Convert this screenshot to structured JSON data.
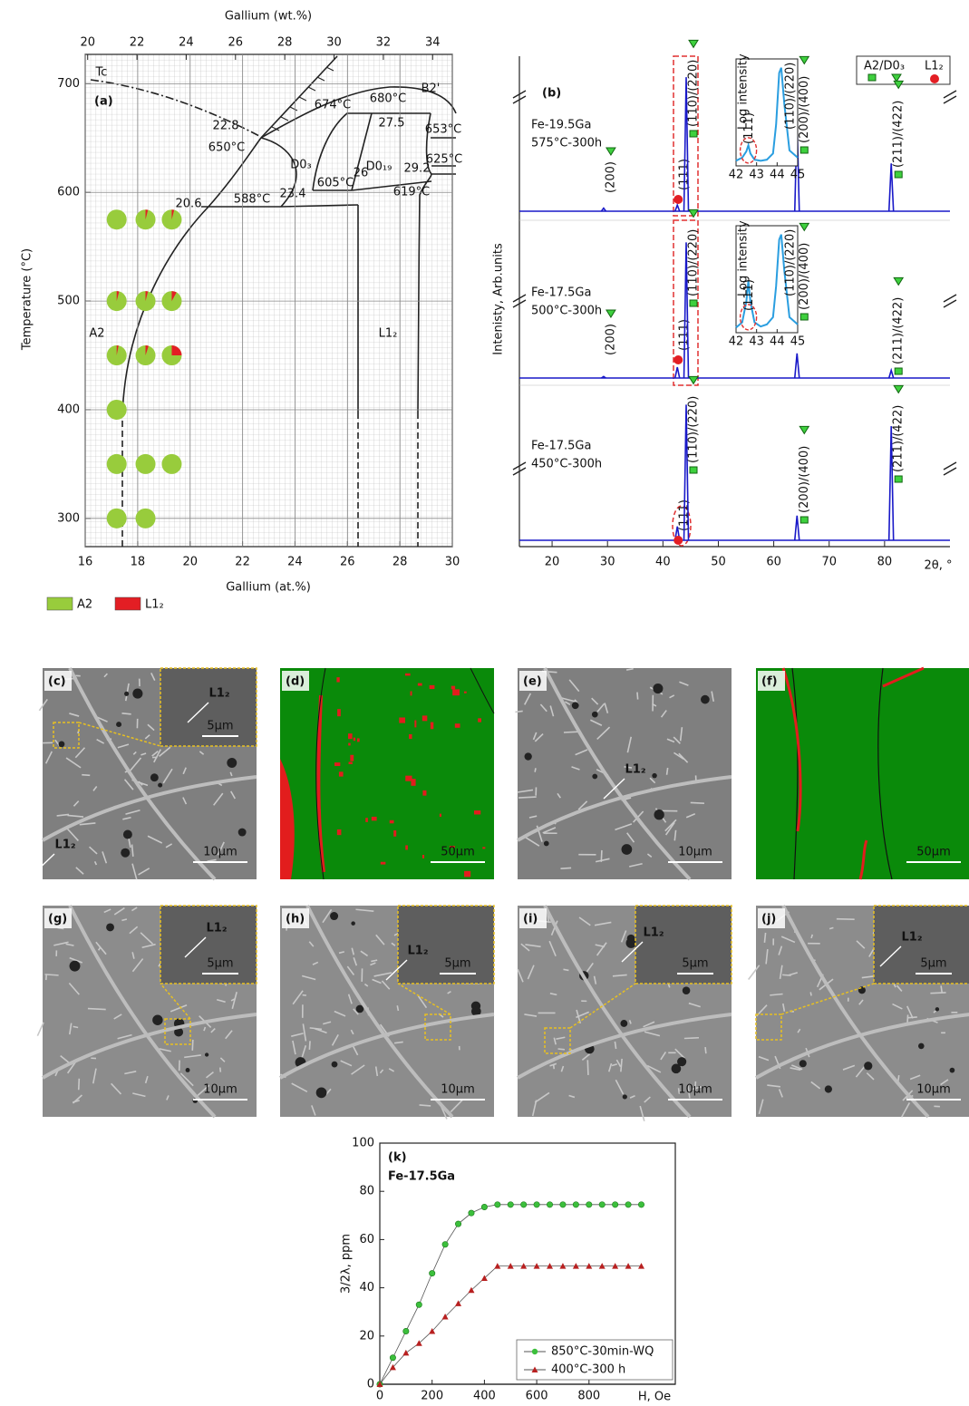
{
  "chart_data": [
    {
      "type": "pie-scatter",
      "panel": "(a)",
      "x_label": "Gallium (at.%)",
      "x2_label": "Gallium (wt.%)",
      "y_label": "Temperature (°C)",
      "xlim": [
        16,
        30
      ],
      "xticks": [
        16,
        18,
        20,
        22,
        24,
        26,
        28,
        30
      ],
      "x2lim": [
        19.9,
        34.8
      ],
      "x2ticks": [
        20,
        22,
        24,
        26,
        28,
        30,
        32,
        34
      ],
      "ylim": [
        274,
        727
      ],
      "yticks": [
        300,
        400,
        500,
        600,
        700
      ],
      "grid": true,
      "legend": [
        {
          "name": "A2",
          "color": "#98cc3c"
        },
        {
          "name": "L1₂",
          "color": "#e31e24"
        }
      ],
      "points": {
        "x": [
          17.2,
          18.3,
          19.3,
          17.2,
          18.3,
          19.3,
          17.2,
          18.3,
          19.3,
          17.2,
          17.2,
          18.3,
          19.3,
          17.2,
          18.3
        ],
        "y": [
          575,
          575,
          575,
          500,
          500,
          500,
          450,
          450,
          450,
          400,
          350,
          350,
          350,
          300,
          300
        ],
        "values": [
          0,
          4,
          4,
          4,
          4,
          8,
          3,
          5,
          25,
          0,
          0,
          0,
          0,
          0,
          0
        ]
      },
      "annotations": [
        "Tc",
        "B2'",
        "680°C",
        "674°C",
        "653°C",
        "650°C",
        "22.8",
        "27.5",
        "D0₃",
        "D0₁₉",
        "605°C",
        "26",
        "29.2",
        "625°C",
        "619°C",
        "588°C",
        "23.4",
        "20.6",
        "A2",
        "L1₂"
      ]
    },
    {
      "type": "spectrum",
      "panel": "(b)",
      "y_label": "Intenisty, Arb.units",
      "x_label": "2θ, °",
      "xlim": [
        14.1,
        91.8
      ],
      "xticks": [
        20,
        30,
        40,
        50,
        60,
        70,
        80
      ],
      "ylim": [
        0,
        100
      ],
      "color": "#1818c8",
      "legend": [
        {
          "name": "A2/D0₃",
          "color": "#1e9e1e"
        },
        {
          "name": "L1₂",
          "color": "#e31e24"
        }
      ],
      "panels": [
        {
          "sample": "Fe-19.5Ga",
          "treatment": "575°C-300h",
          "x": [
            29.3,
            42.6,
            44.2,
            64.2,
            81.2
          ],
          "values": [
            2,
            4,
            87,
            60,
            31
          ],
          "peak_labels": [
            "(200)",
            "(111)",
            "(110)/(220)",
            "(200)/(400)",
            "(211)/(422)"
          ],
          "peak_colors": [
            "#1e9e1e",
            "#e31e24",
            "#1e9e1e",
            "#1e9e1e",
            "#1e9e1e"
          ],
          "inset": {
            "y_label": "Log intensity",
            "xlim": [
              42,
              45
            ],
            "xticks": [
              42,
              43,
              44,
              45
            ],
            "ylim": [
              0,
              100
            ],
            "color": "#2a9ee0",
            "x": [
              42,
              42.3,
              42.5,
              42.6,
              42.7,
              42.9,
              43.2,
              43.5,
              43.8,
              43.95,
              44.1,
              44.2,
              44.35,
              44.6,
              45
            ],
            "values": [
              5,
              8,
              14,
              20,
              12,
              6,
              5,
              6,
              12,
              40,
              90,
              95,
              60,
              15,
              8
            ],
            "labels": [
              "(111)",
              "(110)/(220)"
            ]
          }
        },
        {
          "sample": "Fe-17.5Ga",
          "treatment": "500°C-300h",
          "x": [
            29.3,
            42.6,
            44.2,
            64.2,
            81.2
          ],
          "values": [
            1,
            7,
            88,
            16,
            5
          ],
          "peak_labels": [
            "(200)",
            "(111)",
            "(110)/(220)",
            "(200)/(400)",
            "(211)/(422)"
          ],
          "peak_colors": [
            "#1e9e1e",
            "#e31e24",
            "#1e9e1e",
            "#1e9e1e",
            "#1e9e1e"
          ],
          "inset": {
            "y_label": "Log intensity",
            "xlim": [
              42,
              45
            ],
            "xticks": [
              42,
              43,
              44,
              45
            ],
            "ylim": [
              0,
              100
            ],
            "color": "#2a9ee0",
            "x": [
              42,
              42.3,
              42.5,
              42.6,
              42.7,
              42.9,
              43.2,
              43.5,
              43.8,
              43.95,
              44.1,
              44.2,
              44.35,
              44.6,
              45
            ],
            "values": [
              5,
              10,
              30,
              50,
              30,
              10,
              6,
              8,
              15,
              45,
              90,
              95,
              60,
              15,
              8
            ],
            "labels": [
              "(111)",
              "(110)/(220)"
            ]
          }
        },
        {
          "sample": "Fe-17.5Ga",
          "treatment": "450°C-300h",
          "x": [
            42.6,
            44.2,
            64.2,
            81.2
          ],
          "values": [
            9,
            88,
            16,
            74
          ],
          "peak_labels": [
            "(111)",
            "(110)/(220)",
            "(200)/(400)",
            "(211)/(422)"
          ],
          "peak_colors": [
            "#e31e24",
            "#1e9e1e",
            "#1e9e1e",
            "#1e9e1e"
          ]
        }
      ]
    },
    {
      "type": "line",
      "panel": "(k)",
      "title": "Fe-17.5Ga",
      "x_label": "H, Oe",
      "y_label": "3/2λ, ppm",
      "x": [
        0,
        50,
        100,
        150,
        200,
        250,
        300,
        350,
        400,
        450,
        500,
        550,
        600,
        650,
        700,
        750,
        800,
        850,
        900,
        950,
        1000
      ],
      "xlim": [
        0,
        1130
      ],
      "xticks": [
        0,
        200,
        400,
        600,
        800
      ],
      "ylim": [
        0,
        100
      ],
      "yticks": [
        0,
        20,
        40,
        60,
        80,
        100
      ],
      "series": [
        {
          "name": "850°C-30min-WQ",
          "color": "#3cbf3c",
          "marker": "circle",
          "values": [
            0,
            11,
            22,
            33,
            46,
            58,
            66.5,
            71,
            73.5,
            74.5,
            74.5,
            74.5,
            74.5,
            74.5,
            74.5,
            74.5,
            74.5,
            74.5,
            74.5,
            74.5,
            74.5
          ]
        },
        {
          "name": "400°C-300 h",
          "color": "#b82020",
          "marker": "triangle",
          "values": [
            0,
            7,
            13,
            17,
            22,
            28,
            33.5,
            39,
            44,
            49,
            49,
            49,
            49,
            49,
            49,
            49,
            49,
            49,
            49,
            49,
            49
          ]
        }
      ]
    }
  ],
  "micrographs": [
    {
      "label": "(c)",
      "notes": [
        "L1₂",
        "L1₂"
      ],
      "scales": [
        "5µm",
        "10µm"
      ]
    },
    {
      "label": "(d)",
      "notes": [],
      "scales": [
        "50µm"
      ]
    },
    {
      "label": "(e)",
      "notes": [
        "L1₂"
      ],
      "scales": [
        "10µm"
      ]
    },
    {
      "label": "(f)",
      "notes": [],
      "scales": [
        "50µm"
      ]
    },
    {
      "label": "(g)",
      "notes": [
        "L1₂"
      ],
      "scales": [
        "5µm",
        "10µm"
      ]
    },
    {
      "label": "(h)",
      "notes": [
        "L1₂"
      ],
      "scales": [
        "5µm",
        "10µm"
      ]
    },
    {
      "label": "(i)",
      "notes": [
        "L1₂"
      ],
      "scales": [
        "5µm",
        "10µm"
      ]
    },
    {
      "label": "(j)",
      "notes": [
        "L1₂"
      ],
      "scales": [
        "5µm",
        "10µm"
      ]
    }
  ]
}
